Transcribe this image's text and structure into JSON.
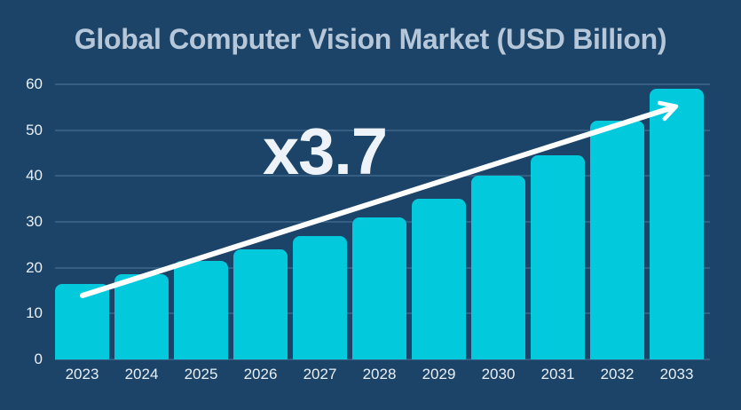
{
  "title": "Global Computer Vision Market (USD Billion)",
  "annotation": "x3.7",
  "chart_data": {
    "type": "bar",
    "title": "Global Computer Vision Market (USD Billion)",
    "categories": [
      "2023",
      "2024",
      "2025",
      "2026",
      "2027",
      "2028",
      "2029",
      "2030",
      "2031",
      "2032",
      "2033"
    ],
    "values": [
      16.5,
      18.5,
      21.5,
      24,
      27,
      31,
      35,
      40,
      44.5,
      52,
      59
    ],
    "xlabel": "",
    "ylabel": "",
    "ylim": [
      0,
      60
    ],
    "yticks": [
      0,
      10,
      20,
      30,
      40,
      50,
      60
    ],
    "grid": "horizontal",
    "legend": "none",
    "annotations": [
      {
        "text": "x3.7"
      }
    ],
    "trend_arrow": {
      "from_category": "2023",
      "to_category": "2033"
    }
  },
  "colors": {
    "background": "#1b4468",
    "bar": "#03c9dd",
    "title_text": "#b5c7d8",
    "tick_text": "#e8eff6",
    "gridline": "rgba(160,200,235,0.20)",
    "arrow": "#ffffff",
    "annotation_text": "#eef3f9"
  }
}
